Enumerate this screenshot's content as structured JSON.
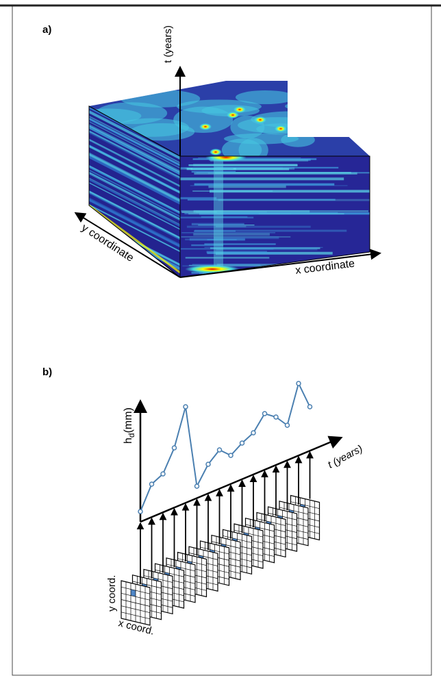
{
  "panel_a": {
    "label": "a)",
    "t_axis_label": "t (years)",
    "y_axis_label": "y coordinate",
    "x_axis_label": "x coordinate"
  },
  "panel_b": {
    "label": "b)",
    "y_axis_label": {
      "symbol": "h",
      "subscript": "d",
      "unit": "(mm)"
    },
    "t_axis_label": "t (years)",
    "grid_y_label": "y coord.",
    "grid_x_label": "x coord.",
    "series": {
      "values": [
        15,
        55,
        70,
        108,
        168,
        52,
        84,
        105,
        97,
        115,
        130,
        158,
        153,
        141,
        202,
        168
      ]
    }
  }
}
